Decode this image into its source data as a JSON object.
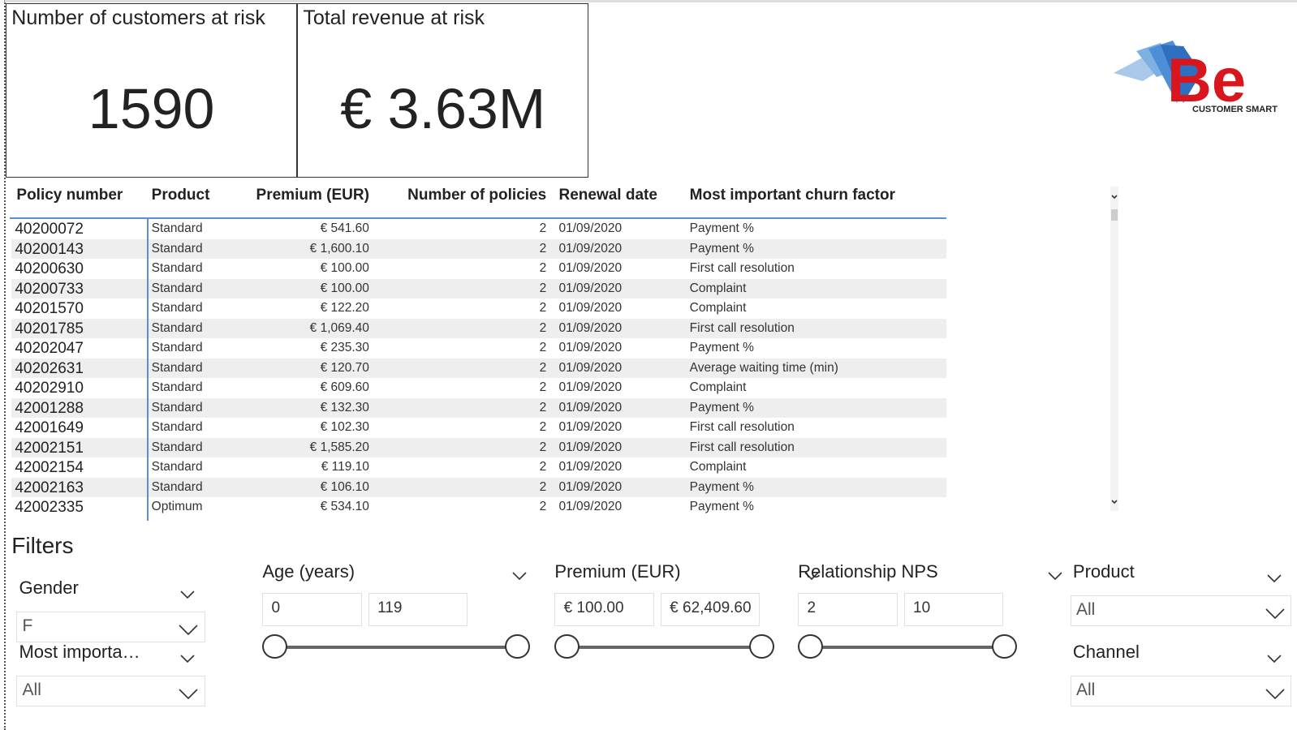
{
  "cards": [
    {
      "title": "Number of customers at risk",
      "value": "1590"
    },
    {
      "title": "Total revenue at risk",
      "value": "€ 3.63M"
    }
  ],
  "logo": {
    "text": "Be",
    "subtext": "CUSTOMER SMART"
  },
  "table": {
    "columns": [
      "Policy number",
      "Product",
      "Premium (EUR)",
      "Number of policies",
      "Renewal date",
      "Most important churn factor"
    ],
    "rows": [
      [
        "40200072",
        "Standard",
        "€ 541.60",
        "2",
        "01/09/2020",
        "Payment %"
      ],
      [
        "40200143",
        "Standard",
        "€ 1,600.10",
        "2",
        "01/09/2020",
        "Payment %"
      ],
      [
        "40200630",
        "Standard",
        "€ 100.00",
        "2",
        "01/09/2020",
        "First call resolution"
      ],
      [
        "40200733",
        "Standard",
        "€ 100.00",
        "2",
        "01/09/2020",
        "Complaint"
      ],
      [
        "40201570",
        "Standard",
        "€ 122.20",
        "2",
        "01/09/2020",
        "Complaint"
      ],
      [
        "40201785",
        "Standard",
        "€ 1,069.40",
        "2",
        "01/09/2020",
        "First call resolution"
      ],
      [
        "40202047",
        "Standard",
        "€ 235.30",
        "2",
        "01/09/2020",
        "Payment %"
      ],
      [
        "40202631",
        "Standard",
        "€ 120.70",
        "2",
        "01/09/2020",
        "Average waiting time (min)"
      ],
      [
        "40202910",
        "Standard",
        "€ 609.60",
        "2",
        "01/09/2020",
        "Complaint"
      ],
      [
        "42001288",
        "Standard",
        "€ 132.30",
        "2",
        "01/09/2020",
        "Payment %"
      ],
      [
        "42001649",
        "Standard",
        "€ 102.30",
        "2",
        "01/09/2020",
        "First call resolution"
      ],
      [
        "42002151",
        "Standard",
        "€ 1,585.20",
        "2",
        "01/09/2020",
        "First call resolution"
      ],
      [
        "42002154",
        "Standard",
        "€ 119.10",
        "2",
        "01/09/2020",
        "Complaint"
      ],
      [
        "42002163",
        "Standard",
        "€ 106.10",
        "2",
        "01/09/2020",
        "Payment %"
      ],
      [
        "42002335",
        "Optimum",
        "€ 534.10",
        "2",
        "01/09/2020",
        "Payment %"
      ]
    ]
  },
  "filters": {
    "title": "Filters",
    "gender": {
      "label": "Gender",
      "selected": "F"
    },
    "churn_factor": {
      "label": "Most importa…",
      "selected": "All"
    },
    "age": {
      "label": "Age (years)",
      "min": "0",
      "max": "119"
    },
    "premium": {
      "label": "Premium (EUR)",
      "min": "€ 100.00",
      "max": "€ 62,409.60"
    },
    "nps": {
      "label": "Relationship NPS",
      "min": "2",
      "max": "10"
    },
    "product": {
      "label": "Product",
      "selected": "All"
    },
    "channel": {
      "label": "Channel",
      "selected": "All"
    }
  }
}
